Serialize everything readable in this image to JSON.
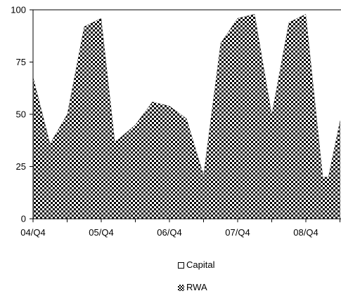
{
  "chart_data": {
    "type": "area",
    "stacked": true,
    "title": "",
    "xlabel": "",
    "ylabel": "",
    "ylim": [
      0,
      100
    ],
    "y_ticks": [
      0,
      25,
      50,
      75,
      100
    ],
    "x_tick_labels": [
      "04/Q4",
      "05/Q4",
      "06/Q4",
      "07/Q4",
      "08/Q4"
    ],
    "grid": false,
    "legend_position": "bottom",
    "x": [
      0,
      0.25,
      0.5,
      0.75,
      1.0,
      1.2,
      1.25,
      1.5,
      1.75,
      2.0,
      2.25,
      2.5,
      2.75,
      3.0,
      3.25,
      3.5,
      3.75,
      4.0,
      4.25,
      4.33,
      4.5
    ],
    "series": [
      {
        "name": "RWA",
        "fill": "checkered",
        "values": [
          68,
          36,
          50,
          92,
          96,
          37,
          38,
          45,
          56,
          54,
          48,
          21,
          84,
          96,
          98,
          50,
          94,
          98,
          20,
          20,
          47
        ]
      },
      {
        "name": "Capital",
        "fill": "#ffffff",
        "values": [
          32,
          64,
          50,
          8,
          4,
          63,
          62,
          55,
          44,
          46,
          52,
          79,
          16,
          4,
          2,
          50,
          6,
          2,
          80,
          80,
          53
        ]
      }
    ]
  },
  "legend": {
    "capital_label": "Capital",
    "rwa_label": "RWA"
  }
}
